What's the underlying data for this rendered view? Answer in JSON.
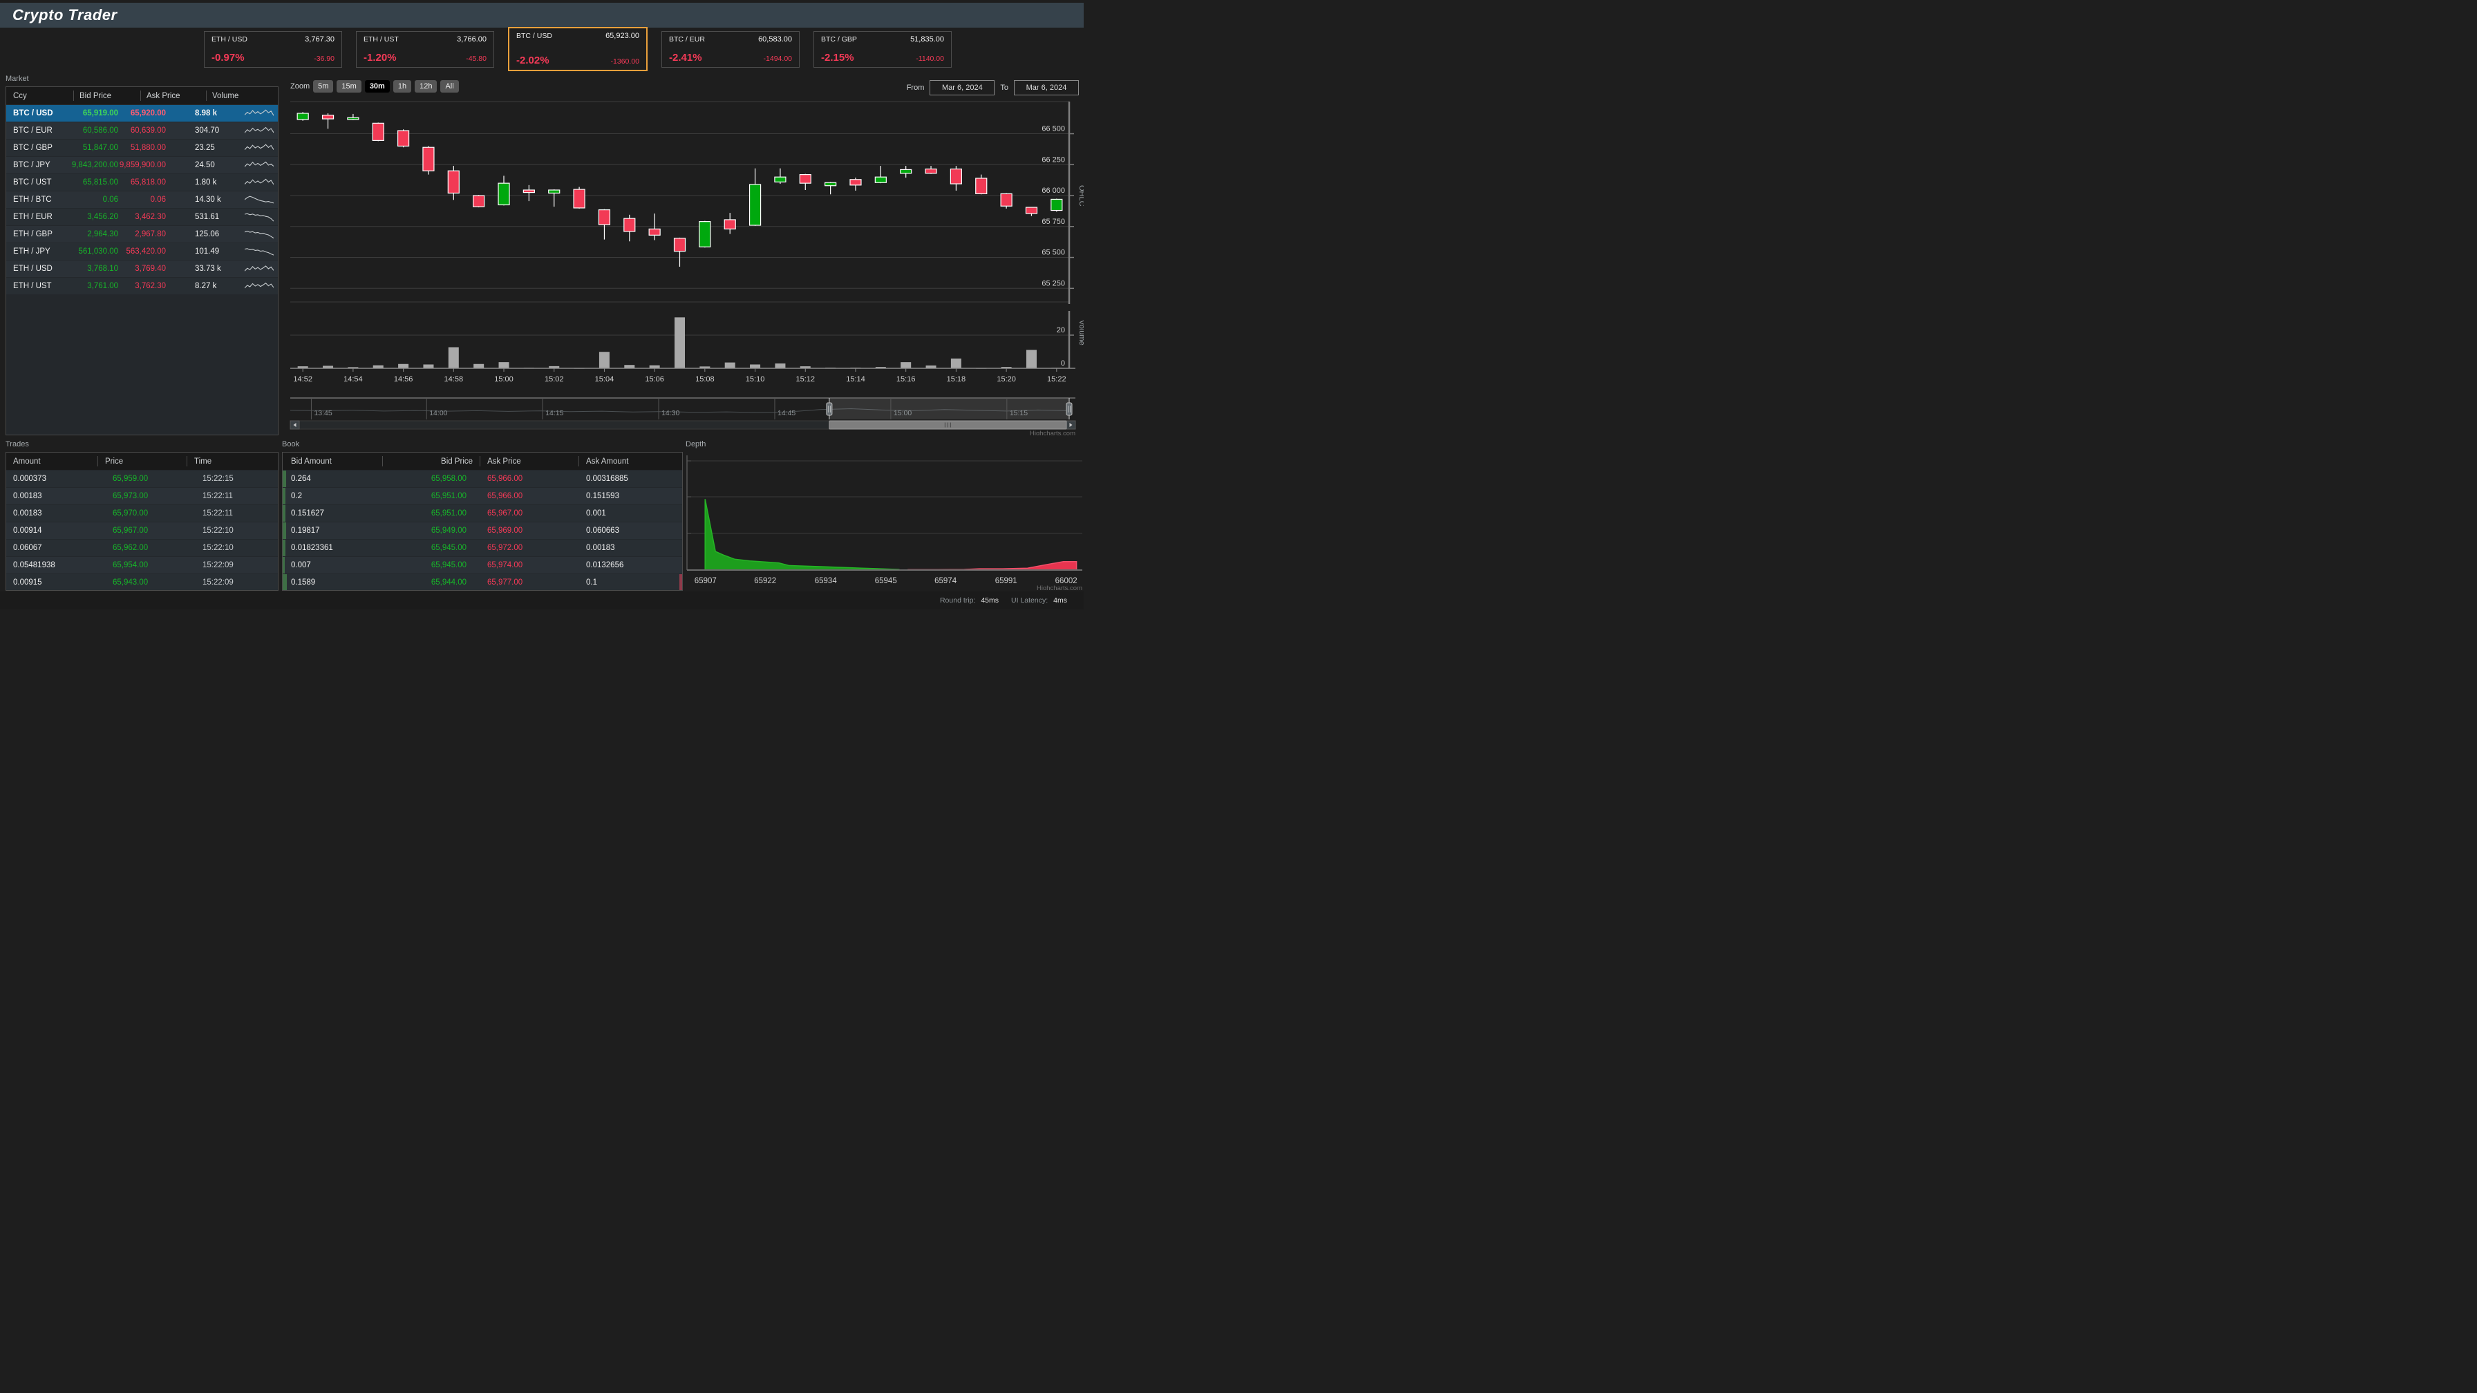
{
  "header": {
    "title": "Crypto Trader"
  },
  "tickers": [
    {
      "pair": "ETH / USD",
      "price": "3,767.30",
      "pct": "-0.97%",
      "change": "-36.90",
      "selected": false
    },
    {
      "pair": "ETH / UST",
      "price": "3,766.00",
      "pct": "-1.20%",
      "change": "-45.80",
      "selected": false
    },
    {
      "pair": "BTC / USD",
      "price": "65,923.00",
      "pct": "-2.02%",
      "change": "-1360.00",
      "selected": true
    },
    {
      "pair": "BTC / EUR",
      "price": "60,583.00",
      "pct": "-2.41%",
      "change": "-1494.00",
      "selected": false
    },
    {
      "pair": "BTC / GBP",
      "price": "51,835.00",
      "pct": "-2.15%",
      "change": "-1140.00",
      "selected": false
    }
  ],
  "market": {
    "title": "Market",
    "columns": [
      "Ccy",
      "Bid Price",
      "Ask Price",
      "Volume"
    ],
    "rows": [
      {
        "pair": "BTC / USD",
        "bid": "65,919.00",
        "ask": "65,920.00",
        "volume": "8.98 k",
        "selected": true,
        "spark": [
          0.35,
          0.6,
          0.45,
          0.75,
          0.5,
          0.65,
          0.45,
          0.6,
          0.8,
          0.55,
          0.7,
          0.3
        ]
      },
      {
        "pair": "BTC / EUR",
        "bid": "60,586.00",
        "ask": "60,639.00",
        "volume": "304.70",
        "selected": false,
        "spark": [
          0.3,
          0.58,
          0.42,
          0.72,
          0.5,
          0.62,
          0.44,
          0.58,
          0.78,
          0.52,
          0.68,
          0.32
        ]
      },
      {
        "pair": "BTC / GBP",
        "bid": "51,847.00",
        "ask": "51,880.00",
        "volume": "23.25",
        "selected": false,
        "spark": [
          0.33,
          0.6,
          0.44,
          0.74,
          0.5,
          0.64,
          0.46,
          0.6,
          0.8,
          0.54,
          0.72,
          0.34
        ]
      },
      {
        "pair": "BTC / JPY",
        "bid": "9,843,200.00",
        "ask": "9,859,900.00",
        "volume": "24.50",
        "selected": false,
        "spark": [
          0.36,
          0.62,
          0.46,
          0.76,
          0.52,
          0.66,
          0.48,
          0.62,
          0.78,
          0.5,
          0.6,
          0.4
        ]
      },
      {
        "pair": "BTC / UST",
        "bid": "65,815.00",
        "ask": "65,818.00",
        "volume": "1.80 k",
        "selected": false,
        "spark": [
          0.34,
          0.59,
          0.43,
          0.73,
          0.49,
          0.63,
          0.45,
          0.59,
          0.79,
          0.53,
          0.69,
          0.31
        ]
      },
      {
        "pair": "ETH / BTC",
        "bid": "0.06",
        "ask": "0.06",
        "volume": "14.30 k",
        "selected": false,
        "spark": [
          0.5,
          0.7,
          0.8,
          0.72,
          0.6,
          0.5,
          0.42,
          0.36,
          0.3,
          0.34,
          0.26,
          0.2
        ]
      },
      {
        "pair": "ETH / EUR",
        "bid": "3,456.20",
        "ask": "3,462.30",
        "volume": "531.61",
        "selected": false,
        "spark": [
          0.75,
          0.8,
          0.7,
          0.76,
          0.66,
          0.7,
          0.6,
          0.64,
          0.55,
          0.5,
          0.35,
          0.12
        ]
      },
      {
        "pair": "ETH / GBP",
        "bid": "2,964.30",
        "ask": "2,967.80",
        "volume": "125.06",
        "selected": false,
        "spark": [
          0.7,
          0.78,
          0.68,
          0.73,
          0.62,
          0.66,
          0.56,
          0.6,
          0.5,
          0.44,
          0.3,
          0.15
        ]
      },
      {
        "pair": "ETH / JPY",
        "bid": "561,030.00",
        "ask": "563,420.00",
        "volume": "101.49",
        "selected": false,
        "spark": [
          0.72,
          0.76,
          0.66,
          0.7,
          0.6,
          0.63,
          0.53,
          0.57,
          0.47,
          0.4,
          0.28,
          0.18
        ]
      },
      {
        "pair": "ETH / USD",
        "bid": "3,768.10",
        "ask": "3,769.40",
        "volume": "33.73 k",
        "selected": false,
        "spark": [
          0.3,
          0.55,
          0.42,
          0.7,
          0.48,
          0.62,
          0.44,
          0.58,
          0.75,
          0.5,
          0.66,
          0.35
        ]
      },
      {
        "pair": "ETH / UST",
        "bid": "3,761.00",
        "ask": "3,762.30",
        "volume": "8.27 k",
        "selected": false,
        "spark": [
          0.32,
          0.57,
          0.44,
          0.72,
          0.5,
          0.64,
          0.46,
          0.6,
          0.77,
          0.52,
          0.68,
          0.37
        ]
      }
    ]
  },
  "chart": {
    "zoom_label": "Zoom",
    "ranges": [
      {
        "label": "5m",
        "selected": false
      },
      {
        "label": "15m",
        "selected": false
      },
      {
        "label": "30m",
        "selected": true
      },
      {
        "label": "1h",
        "selected": false
      },
      {
        "label": "12h",
        "selected": false
      },
      {
        "label": "All",
        "selected": false
      }
    ],
    "from_label": "From",
    "from_value": "Mar 6, 2024",
    "to_label": "To",
    "to_value": "Mar 6, 2024",
    "credit": "Highcharts.com"
  },
  "chart_data": [
    {
      "type": "candlestick+volume",
      "title": "",
      "ohlc_axis_label": "OHLC",
      "volume_axis_label": "Volume",
      "y_ticks": [
        66500,
        66250,
        66000,
        65750,
        65500,
        65250
      ],
      "y_tick_labels": [
        "66 500",
        "66 250",
        "66 000",
        "65 750",
        "65 500",
        "65 250"
      ],
      "ylim": [
        65140,
        66760
      ],
      "volume_ticks": [
        20,
        0
      ],
      "volume_ylim": [
        0,
        40
      ],
      "x_labels": [
        "14:52",
        "14:54",
        "14:56",
        "14:58",
        "15:00",
        "15:02",
        "15:04",
        "15:06",
        "15:08",
        "15:10",
        "15:12",
        "15:14",
        "15:16",
        "15:18",
        "15:20",
        "15:22"
      ],
      "navigator_labels": [
        "13:45",
        "14:00",
        "14:15",
        "14:30",
        "14:45",
        "15:00",
        "15:15"
      ],
      "navigator_selected_range": [
        0.692,
        1.0
      ],
      "navigator_series": [
        0.42,
        0.4,
        0.43,
        0.38,
        0.41,
        0.37,
        0.4,
        0.36,
        0.39,
        0.34,
        0.37,
        0.32,
        0.35,
        0.3,
        0.33,
        0.29,
        0.33,
        0.47,
        0.52,
        0.44,
        0.4,
        0.47,
        0.42,
        0.38,
        0.44,
        0.4
      ],
      "candles": [
        [
          "14:52",
          66615,
          66675,
          66605,
          66665,
          1.2
        ],
        [
          "14:53",
          66650,
          66665,
          66540,
          66620,
          1.5
        ],
        [
          "14:54",
          66615,
          66660,
          66610,
          66630,
          0.7
        ],
        [
          "14:55",
          66585,
          66590,
          66440,
          66445,
          1.8
        ],
        [
          "14:56",
          66525,
          66535,
          66390,
          66400,
          2.6
        ],
        [
          "14:57",
          66390,
          66400,
          66170,
          66200,
          2.3
        ],
        [
          "14:58",
          66200,
          66240,
          65965,
          66020,
          12.7
        ],
        [
          "14:59",
          66000,
          66005,
          65905,
          65910,
          2.6
        ],
        [
          "15:00",
          65925,
          66160,
          65920,
          66100,
          3.7
        ],
        [
          "15:01",
          66045,
          66085,
          65955,
          66025,
          0.3
        ],
        [
          "15:02",
          66020,
          66050,
          65910,
          66045,
          1.3
        ],
        [
          "15:03",
          66050,
          66070,
          65895,
          65900,
          0.15
        ],
        [
          "15:04",
          65885,
          65890,
          65645,
          65765,
          9.9
        ],
        [
          "15:05",
          65815,
          65845,
          65630,
          65710,
          2.0
        ],
        [
          "15:06",
          65730,
          65855,
          65640,
          65680,
          1.8
        ],
        [
          "15:07",
          65655,
          65660,
          65425,
          65550,
          30.7
        ],
        [
          "15:08",
          65585,
          65795,
          65580,
          65790,
          1.1
        ],
        [
          "15:09",
          65805,
          65860,
          65690,
          65730,
          3.5
        ],
        [
          "15:10",
          65760,
          66220,
          65755,
          66090,
          2.3
        ],
        [
          "15:11",
          66110,
          66220,
          66095,
          66150,
          2.9
        ],
        [
          "15:12",
          66170,
          66175,
          66045,
          66100,
          1.2
        ],
        [
          "15:13",
          66080,
          66110,
          66010,
          66105,
          0.4
        ],
        [
          "15:14",
          66130,
          66145,
          66040,
          66085,
          0.4
        ],
        [
          "15:15",
          66105,
          66240,
          66100,
          66150,
          0.8
        ],
        [
          "15:16",
          66180,
          66240,
          66145,
          66210,
          3.7
        ],
        [
          "15:17",
          66215,
          66240,
          66175,
          66180,
          1.7
        ],
        [
          "15:18",
          66215,
          66240,
          66040,
          66095,
          5.9
        ],
        [
          "15:19",
          66140,
          66170,
          66010,
          66015,
          0.15
        ],
        [
          "15:20",
          66015,
          66020,
          65895,
          65915,
          0.8
        ],
        [
          "15:21",
          65905,
          65905,
          65835,
          65855,
          11.1
        ],
        [
          "15:22",
          65880,
          65975,
          65870,
          65970,
          0.3
        ]
      ]
    },
    {
      "type": "area",
      "title": "Depth",
      "x_labels": [
        "65907",
        "65922",
        "65934",
        "65945",
        "65974",
        "65991",
        "66002"
      ],
      "bids": [
        [
          0.049,
          0.65
        ],
        [
          0.075,
          0.17
        ],
        [
          0.094,
          0.14
        ],
        [
          0.123,
          0.1
        ],
        [
          0.161,
          0.084
        ],
        [
          0.234,
          0.066
        ],
        [
          0.259,
          0.042
        ],
        [
          0.352,
          0.03
        ],
        [
          0.443,
          0.018
        ],
        [
          0.536,
          0.006
        ]
      ],
      "asks": [
        [
          0.559,
          0.004
        ],
        [
          0.635,
          0.004
        ],
        [
          0.7,
          0.006
        ],
        [
          0.738,
          0.012
        ],
        [
          0.795,
          0.012
        ],
        [
          0.859,
          0.018
        ],
        [
          0.904,
          0.048
        ],
        [
          0.949,
          0.078
        ],
        [
          0.982,
          0.078
        ]
      ],
      "credit": "Highcharts.com"
    }
  ],
  "trades": {
    "title": "Trades",
    "columns": [
      "Amount",
      "Price",
      "Time"
    ],
    "rows": [
      {
        "amount": "0.000373",
        "price": "65,959.00",
        "time": "15:22:15"
      },
      {
        "amount": "0.00183",
        "price": "65,973.00",
        "time": "15:22:11"
      },
      {
        "amount": "0.00183",
        "price": "65,970.00",
        "time": "15:22:11"
      },
      {
        "amount": "0.00914",
        "price": "65,967.00",
        "time": "15:22:10"
      },
      {
        "amount": "0.06067",
        "price": "65,962.00",
        "time": "15:22:10"
      },
      {
        "amount": "0.05481938",
        "price": "65,954.00",
        "time": "15:22:09"
      },
      {
        "amount": "0.00915",
        "price": "65,943.00",
        "time": "15:22:09"
      }
    ]
  },
  "book": {
    "title": "Book",
    "columns": [
      "Bid Amount",
      "Bid Price",
      "Ask Price",
      "Ask Amount"
    ],
    "rows": [
      {
        "bid_amount": "0.264",
        "bid_price": "65,958.00",
        "ask_price": "65,966.00",
        "ask_amount": "0.00316885",
        "bid_bar": 5,
        "ask_bar": 0
      },
      {
        "bid_amount": "0.2",
        "bid_price": "65,951.00",
        "ask_price": "65,966.00",
        "ask_amount": "0.151593",
        "bid_bar": 4,
        "ask_bar": 0
      },
      {
        "bid_amount": "0.151627",
        "bid_price": "65,951.00",
        "ask_price": "65,967.00",
        "ask_amount": "0.001",
        "bid_bar": 4,
        "ask_bar": 0
      },
      {
        "bid_amount": "0.19817",
        "bid_price": "65,949.00",
        "ask_price": "65,969.00",
        "ask_amount": "0.060663",
        "bid_bar": 5,
        "ask_bar": 0
      },
      {
        "bid_amount": "0.01823361",
        "bid_price": "65,945.00",
        "ask_price": "65,972.00",
        "ask_amount": "0.00183",
        "bid_bar": 4,
        "ask_bar": 0
      },
      {
        "bid_amount": "0.007",
        "bid_price": "65,945.00",
        "ask_price": "65,974.00",
        "ask_amount": "0.0132656",
        "bid_bar": 3,
        "ask_bar": 0
      },
      {
        "bid_amount": "0.1589",
        "bid_price": "65,944.00",
        "ask_price": "65,977.00",
        "ask_amount": "0.1",
        "bid_bar": 6,
        "ask_bar": 4
      }
    ]
  },
  "depth_title": "Depth",
  "status": {
    "round_trip_label": "Round trip:",
    "round_trip_value": "45ms",
    "ui_latency_label": "UI Latency:",
    "ui_latency_value": "4ms"
  },
  "colors": {
    "up": "#00a80e",
    "down": "#f23a55",
    "bid_text": "#17b529",
    "ask_text": "#f43a57",
    "selected_row": "#156293",
    "accent_orange": "#e9a03b",
    "volume_bar": "#a9a9a9",
    "depth_bid": "#1d9e1d",
    "depth_ask": "#e8344f"
  }
}
